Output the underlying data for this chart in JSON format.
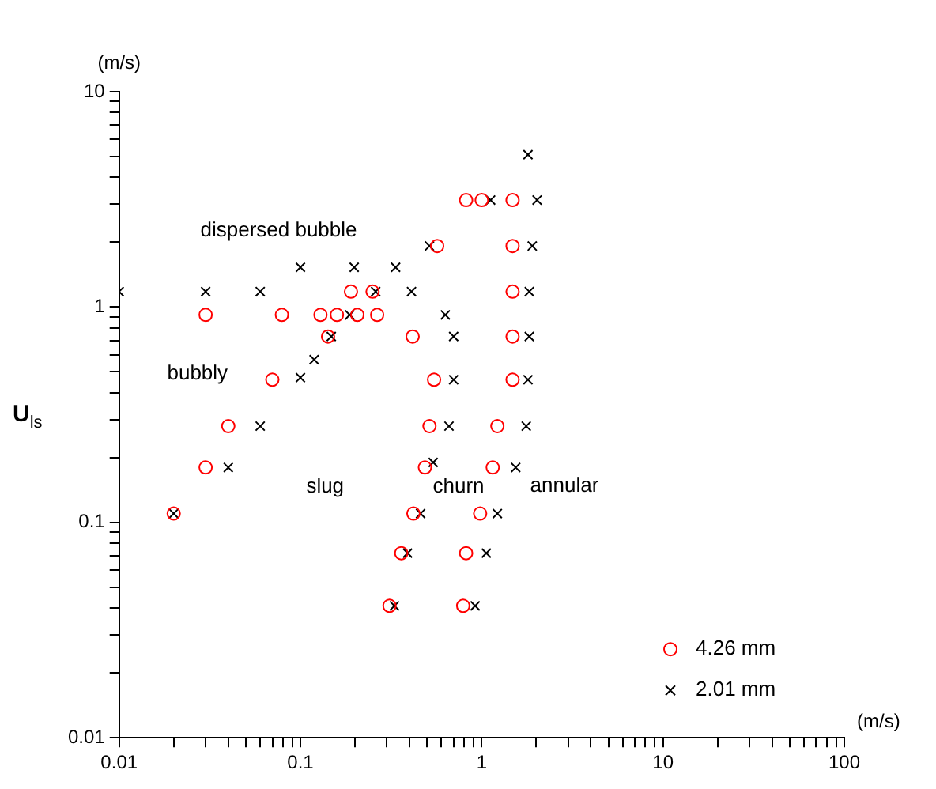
{
  "chart_data": {
    "type": "scatter",
    "log": "xy",
    "grid": false,
    "legend": "bottom right",
    "xlabel": "(m/s)",
    "ylabel": "U$_{ls}$",
    "xlim": [
      0.01,
      100
    ],
    "ylim": [
      0.01,
      10
    ],
    "xticks": [
      0.01,
      {
        "value": 0.02,
        "label": null
      },
      {
        "value": 0.03,
        "label": null
      },
      {
        "value": 0.04,
        "label": null
      },
      {
        "value": 0.05,
        "label": null
      },
      {
        "value": 0.06,
        "label": null
      },
      {
        "value": 0.07,
        "label": null
      },
      {
        "value": 0.08,
        "label": null
      },
      {
        "value": 0.09,
        "label": null
      },
      0.1,
      {
        "value": 0.2,
        "label": null
      },
      {
        "value": 0.3,
        "label": null
      },
      {
        "value": 0.4,
        "label": null
      },
      {
        "value": 0.5,
        "label": null
      },
      {
        "value": 0.6,
        "label": null
      },
      {
        "value": 0.7,
        "label": null
      },
      {
        "value": 0.8,
        "label": null
      },
      {
        "value": 0.9,
        "label": null
      },
      1,
      {
        "value": 2,
        "label": null
      },
      {
        "value": 3,
        "label": null
      },
      {
        "value": 4,
        "label": null
      },
      {
        "value": 5,
        "label": null
      },
      {
        "value": 6,
        "label": null
      },
      {
        "value": 7,
        "label": null
      },
      {
        "value": 8,
        "label": null
      },
      {
        "value": 9,
        "label": null
      },
      10,
      {
        "value": 20,
        "label": null
      },
      {
        "value": 30,
        "label": null
      },
      {
        "value": 40,
        "label": null
      },
      {
        "value": 50,
        "label": null
      },
      {
        "value": 60,
        "label": null
      },
      {
        "value": 70,
        "label": null
      },
      {
        "value": 80,
        "label": null
      },
      {
        "value": 90,
        "label": null
      },
      100
    ],
    "yticks": [
      0.01,
      {
        "value": 0.02,
        "label": null
      },
      {
        "value": 0.03,
        "label": null
      },
      {
        "value": 0.04,
        "label": null
      },
      {
        "value": 0.05,
        "label": null
      },
      {
        "value": 0.06,
        "label": null
      },
      {
        "value": 0.07,
        "label": null
      },
      {
        "value": 0.08,
        "label": null
      },
      {
        "value": 0.09,
        "label": null
      },
      0.1,
      {
        "value": 0.2,
        "label": null
      },
      {
        "value": 0.3,
        "label": null
      },
      {
        "value": 0.4,
        "label": null
      },
      {
        "value": 0.5,
        "label": null
      },
      {
        "value": 0.6,
        "label": null
      },
      {
        "value": 0.7,
        "label": null
      },
      {
        "value": 0.8,
        "label": null
      },
      {
        "value": 0.9,
        "label": null
      },
      1,
      {
        "value": 2,
        "label": null
      },
      {
        "value": 3,
        "label": null
      },
      {
        "value": 4,
        "label": null
      },
      {
        "value": 5,
        "label": null
      },
      {
        "value": 6,
        "label": null
      },
      {
        "value": 7,
        "label": null
      },
      {
        "value": 8,
        "label": null
      },
      {
        "value": 9,
        "label": null
      },
      10
    ],
    "annotations": [
      "(m/s)",
      "dispersed bubble",
      "bubbly",
      "slug",
      "churn",
      "annular"
    ],
    "series": [
      {
        "name": "4.26 mm",
        "color": "#ff0000",
        "marker": "circle",
        "x": [
          0.02,
          0.03,
          0.04,
          0.03,
          0.07,
          0.079,
          0.129,
          0.159,
          0.206,
          0.265,
          0.142,
          0.19,
          0.25,
          0.416,
          0.568,
          0.82,
          1.0,
          1.48,
          1.48,
          1.48,
          1.48,
          1.48,
          0.546,
          0.515,
          1.22,
          0.486,
          1.15,
          0.42,
          0.98,
          0.36,
          0.82,
          0.31,
          0.79
        ],
        "values": [
          0.11,
          0.18,
          0.28,
          0.92,
          0.46,
          0.92,
          0.92,
          0.92,
          0.92,
          0.92,
          0.73,
          1.18,
          1.18,
          0.73,
          1.92,
          3.14,
          3.14,
          3.14,
          1.92,
          1.18,
          0.73,
          0.46,
          0.46,
          0.28,
          0.28,
          0.18,
          0.18,
          0.11,
          0.11,
          0.072,
          0.072,
          0.041,
          0.041
        ]
      },
      {
        "name": "2.01 mm",
        "color": "#000000",
        "marker": "cross",
        "x": [
          0.01,
          0.03,
          0.06,
          0.1,
          0.198,
          0.335,
          0.41,
          0.26,
          0.515,
          1.8,
          1.12,
          2.02,
          1.9,
          1.83,
          1.83,
          1.8,
          1.76,
          1.54,
          0.63,
          0.7,
          0.7,
          0.66,
          0.54,
          0.46,
          1.22,
          0.39,
          1.06,
          0.33,
          0.92,
          0.02,
          0.04,
          0.06,
          0.1,
          0.119,
          0.148,
          0.187
        ],
        "values": [
          1.18,
          1.18,
          1.18,
          1.53,
          1.53,
          1.53,
          1.18,
          1.18,
          1.92,
          5.1,
          3.14,
          3.14,
          1.92,
          1.18,
          0.73,
          0.46,
          0.28,
          0.18,
          0.92,
          0.73,
          0.46,
          0.28,
          0.19,
          0.11,
          0.11,
          0.072,
          0.072,
          0.041,
          0.041,
          0.11,
          0.18,
          0.28,
          0.47,
          0.57,
          0.73,
          0.92
        ]
      }
    ]
  }
}
